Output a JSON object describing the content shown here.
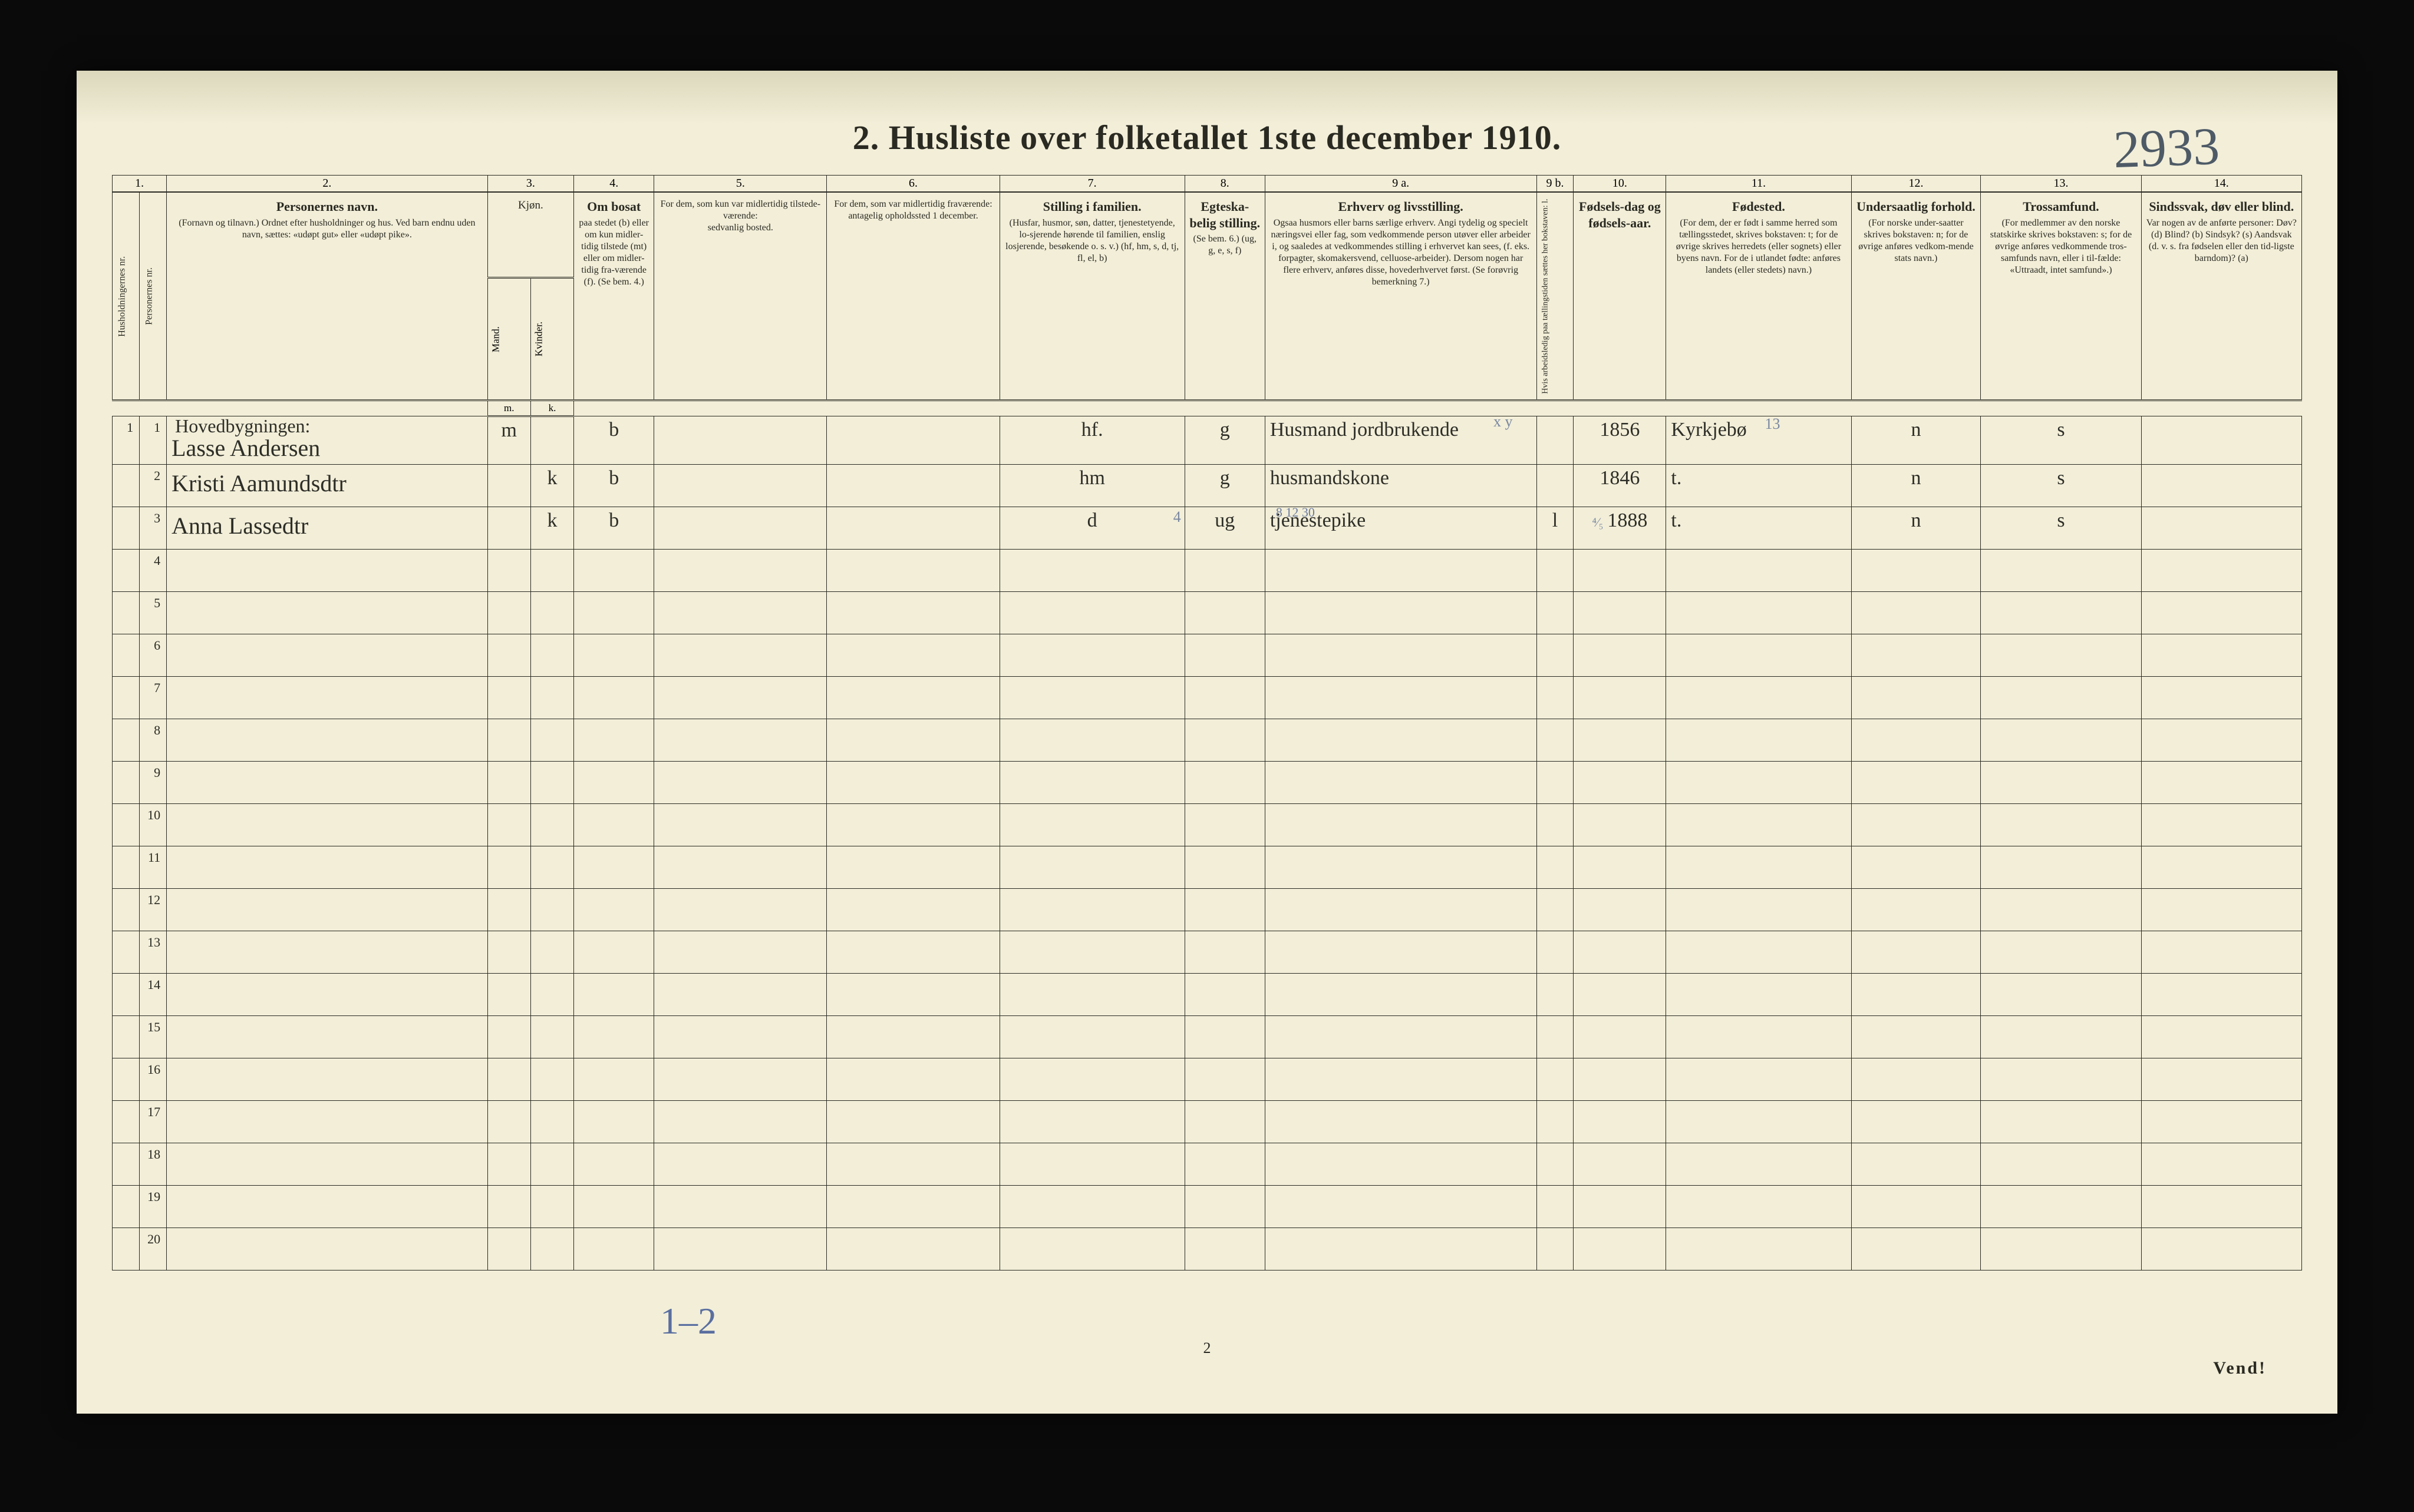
{
  "page": {
    "title": "2.   Husliste over folketallet 1ste december 1910.",
    "handwritten_number": "2933",
    "footer_page_number": "2",
    "vend": "Vend!",
    "bottom_pencil": "1–2"
  },
  "column_numbers": [
    "1.",
    "2.",
    "3.",
    "4.",
    "5.",
    "6.",
    "7.",
    "8.",
    "9 a.",
    "9 b.",
    "10.",
    "11.",
    "12.",
    "13.",
    "14."
  ],
  "headers": {
    "husholdning": "Husholdningernes nr.",
    "personnr": "Personernes nr.",
    "navn_title": "Personernes navn.",
    "navn_sub": "(Fornavn og tilnavn.)\nOrdnet efter husholdninger og hus.\nVed barn endnu uden navn, sættes: «udøpt gut»\neller «udøpt pike».",
    "kjon": "Kjøn.",
    "kjon_m": "Mand.",
    "kjon_k": "Kvinder.",
    "bosat_title": "Om bosat",
    "bosat_sub": "paa stedet (b) eller om kun midler-tidig tilstede (mt) eller om midler-tidig fra-værende (f). (Se bem. 4.)",
    "tilstede_title": "For dem, som kun var midlertidig tilstede-værende:",
    "tilstede_sub": "sedvanlig bosted.",
    "fravar_title": "For dem, som var midlertidig fraværende:",
    "fravar_sub": "antagelig opholdssted 1 december.",
    "stilling_title": "Stilling i familien.",
    "stilling_sub": "(Husfar, husmor, søn, datter, tjenestetyende, lo-sjerende hørende til familien, enslig losjerende, besøkende o. s. v.)\n(hf, hm, s, d, tj, fl, el, b)",
    "egte_title": "Egteska-belig stilling.",
    "egte_sub": "(Se bem. 6.) (ug, g, e, s, f)",
    "erverv_title": "Erhverv og livsstilling.",
    "erverv_sub": "Ogsaa husmors eller barns særlige erhverv. Angi tydelig og specielt næringsvei eller fag, som vedkommende person utøver eller arbeider i, og saaledes at vedkommendes stilling i erhvervet kan sees, (f. eks. forpagter, skomakersvend, celluose-arbeider). Dersom nogen har flere erhverv, anføres disse, hovederhvervet først. (Se forøvrig bemerkning 7.)",
    "arbled_title": "Hvis arbeidsledig paa tællingstiden sættes her bokstaven: l.",
    "fdag_title": "Fødsels-dag og fødsels-aar.",
    "fsted_title": "Fødested.",
    "fsted_sub": "(For dem, der er født i samme herred som tællingsstedet, skrives bokstaven: t; for de øvrige skrives herredets (eller sognets) eller byens navn. For de i utlandet fødte: anføres landets (eller stedets) navn.)",
    "nation_title": "Undersaatlig forhold.",
    "nation_sub": "(For norske under-saatter skrives bokstaven: n; for de øvrige anføres vedkom-mende stats navn.)",
    "relig_title": "Trossamfund.",
    "relig_sub": "(For medlemmer av den norske statskirke skrives bokstaven: s; for de øvrige anføres vedkommende tros-samfunds navn, eller i til-fælde: «Uttraadt, intet samfund».)",
    "disab_title": "Sindssvak, døv eller blind.",
    "disab_sub": "Var nogen av de anførte personer:\nDøv?       (d)\nBlind?      (b)\nSindsyk?  (s)\nAandsvak (d. v. s. fra fødselen eller den tid-ligste barndom)?  (a)"
  },
  "section_label": "Hovedbygningen:",
  "pencil": {
    "xy": "x y",
    "num13": "13",
    "row3_pencil": "8 12 30",
    "row3_marginal": "4"
  },
  "rows": [
    {
      "hush": "1",
      "pers": "1",
      "name": "Lasse Andersen",
      "sex": "m",
      "bosat": "b",
      "famst": "hf.",
      "egte": "g",
      "erverv": "Husmand jordbrukende",
      "fdag": "1856",
      "fsted": "Kyrkjebø",
      "nation": "n",
      "relig": "s"
    },
    {
      "hush": "",
      "pers": "2",
      "name": "Kristi Aamundsdtr",
      "sex": "k",
      "bosat": "b",
      "famst": "hm",
      "egte": "g",
      "erverv": "husmandskone",
      "fdag": "1846",
      "fsted": "t.",
      "nation": "n",
      "relig": "s"
    },
    {
      "hush": "",
      "pers": "3",
      "name": "Anna Lassedtr",
      "sex": "k",
      "bosat": "b",
      "famst": "d",
      "egte": "ug",
      "erverv": "tjenestepike",
      "arbled": "l",
      "fdag_day": "⁴⁄₅",
      "fdag": "1888",
      "fsted": "t.",
      "nation": "n",
      "relig": "s"
    }
  ],
  "empty_row_count": 17,
  "row_labels_start": 4,
  "colors": {
    "paper": "#f2eed8",
    "ink": "#2a2a22",
    "pencil": "#6b7ba0",
    "page_bg": "#0a0a0a"
  }
}
